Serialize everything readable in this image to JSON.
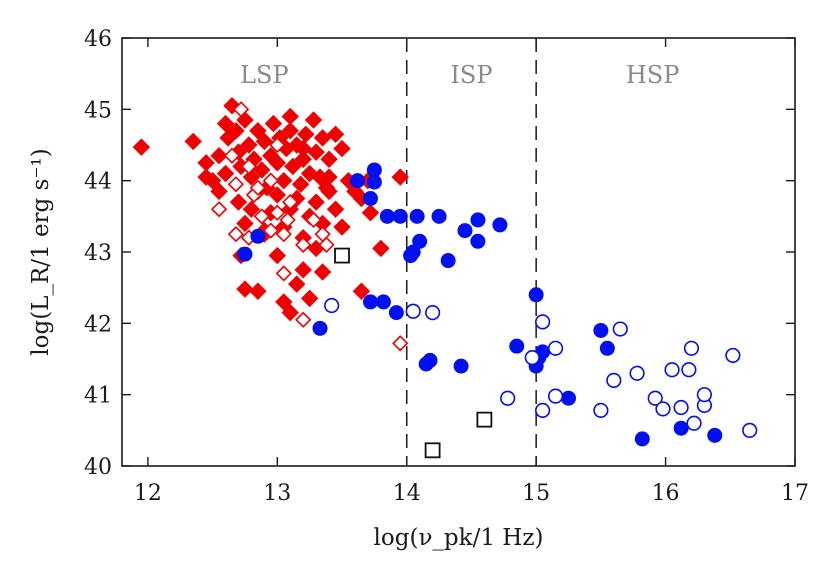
{
  "chart_data": {
    "type": "scatter",
    "xlabel": "log(ν_pk/1 Hz)",
    "ylabel": "log(L_R/1 erg s⁻¹)",
    "xlim": [
      11.8,
      17
    ],
    "ylim": [
      40,
      46
    ],
    "xticks": [
      12,
      13,
      14,
      15,
      16,
      17
    ],
    "yticks": [
      40,
      41,
      42,
      43,
      44,
      45,
      46
    ],
    "grid": false,
    "region_boundaries": [
      14,
      15
    ],
    "regions": [
      {
        "label": "LSP",
        "x": 12.9
      },
      {
        "label": "ISP",
        "x": 14.5
      },
      {
        "label": "HSP",
        "x": 15.9
      }
    ],
    "colors": {
      "red": "#ee0000",
      "blue": "#0010ee",
      "black": "#111111"
    },
    "series": [
      {
        "marker": "diamond-filled",
        "color": "#ee0000",
        "points": [
          [
            11.95,
            44.47
          ],
          [
            12.35,
            44.55
          ],
          [
            12.45,
            44.25
          ],
          [
            12.5,
            44.0
          ],
          [
            12.55,
            44.35
          ],
          [
            12.6,
            44.1
          ],
          [
            12.62,
            44.6
          ],
          [
            12.65,
            45.05
          ],
          [
            12.68,
            44.7
          ],
          [
            12.7,
            44.4
          ],
          [
            12.72,
            44.2
          ],
          [
            12.75,
            44.85
          ],
          [
            12.78,
            44.5
          ],
          [
            12.8,
            44.05
          ],
          [
            12.82,
            44.3
          ],
          [
            12.85,
            44.7
          ],
          [
            12.88,
            44.15
          ],
          [
            12.9,
            44.55
          ],
          [
            12.92,
            43.9
          ],
          [
            12.95,
            44.35
          ],
          [
            12.97,
            44.8
          ],
          [
            13.0,
            44.25
          ],
          [
            13.02,
            44.6
          ],
          [
            13.05,
            44.0
          ],
          [
            13.07,
            44.45
          ],
          [
            13.1,
            44.7
          ],
          [
            13.12,
            44.2
          ],
          [
            13.15,
            44.5
          ],
          [
            13.18,
            43.95
          ],
          [
            13.2,
            44.3
          ],
          [
            13.22,
            44.65
          ],
          [
            13.25,
            44.1
          ],
          [
            13.28,
            44.85
          ],
          [
            13.3,
            44.4
          ],
          [
            13.33,
            44.05
          ],
          [
            13.35,
            44.6
          ],
          [
            13.38,
            43.9
          ],
          [
            13.4,
            44.3
          ],
          [
            13.45,
            44.65
          ],
          [
            13.5,
            44.45
          ],
          [
            13.55,
            44.0
          ],
          [
            13.6,
            43.85
          ],
          [
            13.65,
            43.75
          ],
          [
            13.7,
            44.0
          ],
          [
            13.72,
            43.55
          ],
          [
            12.7,
            43.7
          ],
          [
            12.75,
            43.4
          ],
          [
            12.8,
            43.6
          ],
          [
            12.85,
            43.85
          ],
          [
            12.9,
            43.3
          ],
          [
            12.95,
            43.55
          ],
          [
            13.0,
            43.8
          ],
          [
            13.05,
            43.35
          ],
          [
            13.1,
            43.6
          ],
          [
            13.15,
            43.75
          ],
          [
            13.2,
            43.2
          ],
          [
            13.25,
            43.5
          ],
          [
            13.3,
            43.7
          ],
          [
            13.35,
            43.4
          ],
          [
            13.4,
            43.85
          ],
          [
            13.45,
            43.6
          ],
          [
            13.5,
            43.35
          ],
          [
            12.72,
            42.95
          ],
          [
            12.75,
            42.48
          ],
          [
            12.85,
            42.45
          ],
          [
            12.9,
            43.25
          ],
          [
            13.0,
            42.95
          ],
          [
            13.05,
            42.3
          ],
          [
            13.1,
            42.15
          ],
          [
            13.15,
            42.55
          ],
          [
            13.2,
            42.75
          ],
          [
            13.25,
            42.35
          ],
          [
            13.3,
            43.05
          ],
          [
            13.35,
            42.72
          ],
          [
            13.8,
            43.05
          ],
          [
            13.65,
            42.45
          ],
          [
            13.95,
            44.05
          ],
          [
            13.4,
            44.05
          ],
          [
            12.6,
            44.8
          ],
          [
            13.1,
            44.9
          ],
          [
            13.2,
            44.45
          ],
          [
            12.55,
            43.85
          ],
          [
            12.45,
            44.05
          ]
        ]
      },
      {
        "marker": "diamond-open",
        "color": "#ee0000",
        "points": [
          [
            12.72,
            45.0
          ],
          [
            12.65,
            44.35
          ],
          [
            12.55,
            43.6
          ],
          [
            12.68,
            43.95
          ],
          [
            12.78,
            44.2
          ],
          [
            12.82,
            43.8
          ],
          [
            12.88,
            43.5
          ],
          [
            12.68,
            43.25
          ],
          [
            12.78,
            43.2
          ],
          [
            12.95,
            43.3
          ],
          [
            13.0,
            43.55
          ],
          [
            13.05,
            43.25
          ],
          [
            13.08,
            43.45
          ],
          [
            13.2,
            43.1
          ],
          [
            13.28,
            43.45
          ],
          [
            13.35,
            43.25
          ],
          [
            13.38,
            43.1
          ],
          [
            13.05,
            42.7
          ],
          [
            13.2,
            42.05
          ],
          [
            13.95,
            41.72
          ],
          [
            12.95,
            44.0
          ],
          [
            13.0,
            44.5
          ],
          [
            12.85,
            43.9
          ],
          [
            13.1,
            43.7
          ]
        ]
      },
      {
        "marker": "circle-filled",
        "color": "#0010ee",
        "points": [
          [
            12.75,
            42.97
          ],
          [
            12.85,
            43.22
          ],
          [
            13.62,
            44.0
          ],
          [
            13.75,
            44.15
          ],
          [
            13.75,
            43.98
          ],
          [
            13.72,
            43.75
          ],
          [
            13.85,
            43.5
          ],
          [
            13.95,
            43.5
          ],
          [
            14.08,
            43.5
          ],
          [
            14.25,
            43.5
          ],
          [
            14.45,
            43.3
          ],
          [
            14.55,
            43.45
          ],
          [
            14.72,
            43.38
          ],
          [
            14.1,
            43.15
          ],
          [
            14.03,
            42.95
          ],
          [
            14.05,
            43.0
          ],
          [
            14.55,
            43.15
          ],
          [
            14.32,
            42.88
          ],
          [
            13.72,
            42.3
          ],
          [
            13.82,
            42.3
          ],
          [
            13.92,
            42.15
          ],
          [
            13.33,
            41.93
          ],
          [
            14.15,
            41.43
          ],
          [
            14.18,
            41.48
          ],
          [
            14.42,
            41.4
          ],
          [
            14.85,
            41.68
          ],
          [
            15.0,
            42.4
          ],
          [
            15.02,
            41.52
          ],
          [
            15.05,
            41.6
          ],
          [
            15.0,
            41.4
          ],
          [
            15.25,
            40.95
          ],
          [
            15.5,
            41.9
          ],
          [
            15.55,
            41.65
          ],
          [
            15.82,
            40.38
          ],
          [
            16.12,
            40.53
          ],
          [
            16.38,
            40.43
          ]
        ]
      },
      {
        "marker": "circle-open",
        "color": "#0010ee",
        "points": [
          [
            13.42,
            42.25
          ],
          [
            14.05,
            42.17
          ],
          [
            14.2,
            42.15
          ],
          [
            14.78,
            40.95
          ],
          [
            14.97,
            41.52
          ],
          [
            15.05,
            42.02
          ],
          [
            15.05,
            40.78
          ],
          [
            15.15,
            41.65
          ],
          [
            15.15,
            40.98
          ],
          [
            15.5,
            40.78
          ],
          [
            15.6,
            41.2
          ],
          [
            15.65,
            41.92
          ],
          [
            15.78,
            41.3
          ],
          [
            15.92,
            40.95
          ],
          [
            15.98,
            40.8
          ],
          [
            16.05,
            41.35
          ],
          [
            16.12,
            40.82
          ],
          [
            16.2,
            41.65
          ],
          [
            16.18,
            41.35
          ],
          [
            16.22,
            40.6
          ],
          [
            16.3,
            40.85
          ],
          [
            16.3,
            41.0
          ],
          [
            16.52,
            41.55
          ],
          [
            16.65,
            40.5
          ]
        ]
      },
      {
        "marker": "square-open",
        "color": "#111111",
        "points": [
          [
            13.5,
            42.95
          ],
          [
            14.2,
            40.22
          ],
          [
            14.6,
            40.65
          ]
        ]
      }
    ]
  }
}
